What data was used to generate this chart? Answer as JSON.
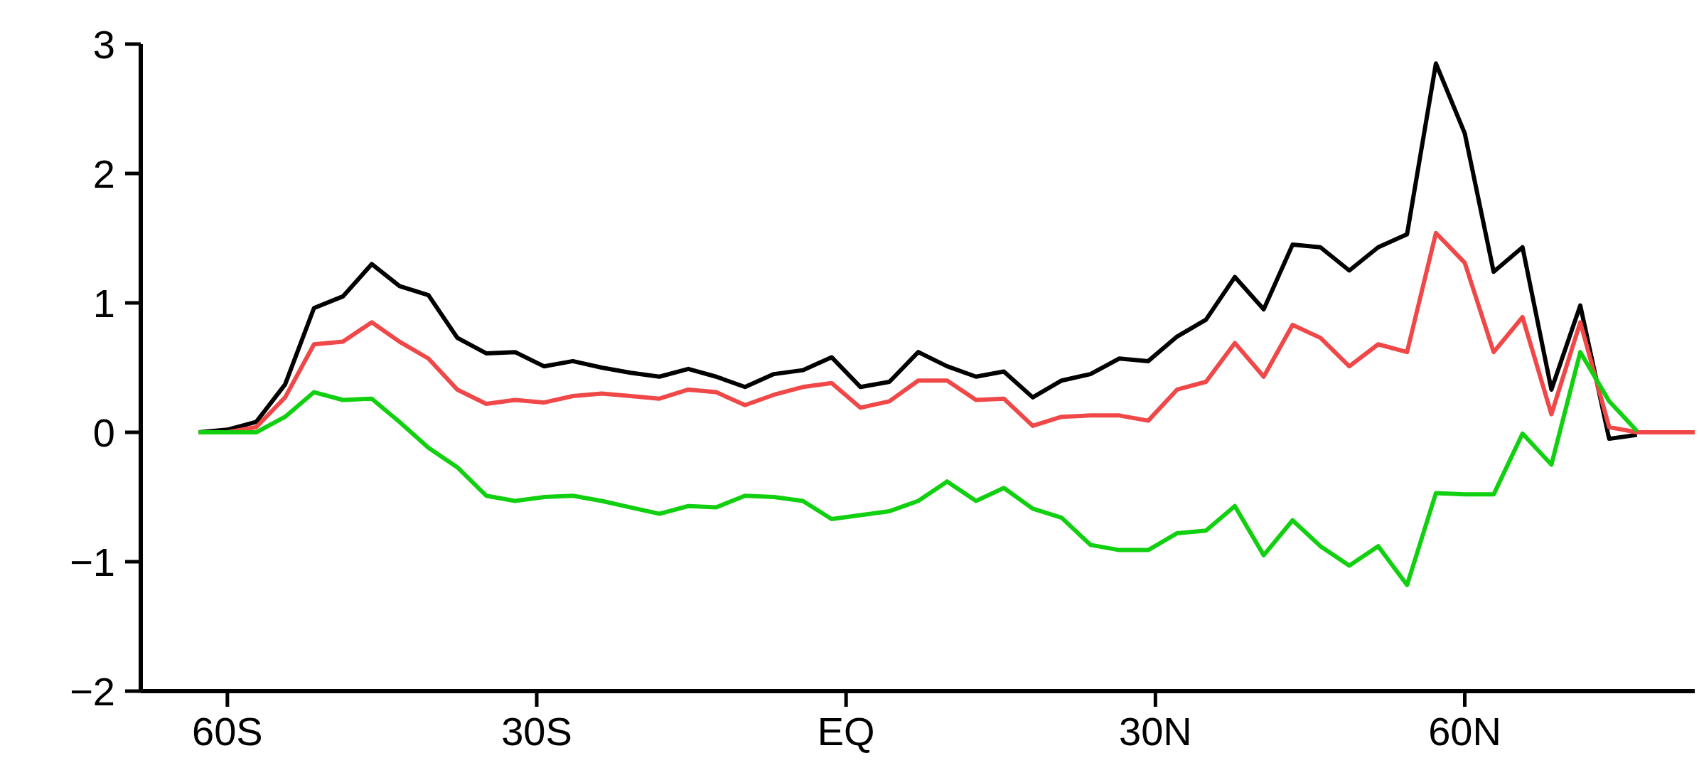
{
  "chart_data": {
    "type": "line",
    "xlim": [
      -68.4,
      82.3
    ],
    "xticks": [
      {
        "value": -60,
        "label": "60S"
      },
      {
        "value": -30,
        "label": "30S"
      },
      {
        "value": 0,
        "label": "EQ"
      },
      {
        "value": 30,
        "label": "30N"
      },
      {
        "value": 60,
        "label": "60N"
      }
    ],
    "ylim": [
      -2,
      3
    ],
    "yticks": [
      {
        "value": -2,
        "label": "−2"
      },
      {
        "value": -1,
        "label": "−1"
      },
      0,
      1,
      2,
      3
    ],
    "grid": false,
    "legend": false,
    "marker": "none",
    "line_style": "solid",
    "x": [
      -62.8,
      -60.0,
      -57.2,
      -54.4,
      -51.6,
      -48.8,
      -46.0,
      -43.3,
      -40.5,
      -37.7,
      -34.9,
      -32.1,
      -29.3,
      -26.5,
      -23.7,
      -20.9,
      -18.1,
      -15.3,
      -12.6,
      -9.8,
      -7.0,
      -4.2,
      -1.4,
      1.4,
      4.2,
      7.0,
      9.8,
      12.6,
      15.3,
      18.1,
      20.9,
      23.7,
      26.5,
      29.3,
      32.1,
      34.9,
      37.7,
      40.5,
      43.3,
      46.0,
      48.8,
      51.6,
      54.4,
      57.2,
      60.0,
      62.8,
      65.6,
      68.4,
      71.2,
      74.0,
      76.7
    ],
    "series": [
      {
        "color": "#000000",
        "values": [
          0,
          0.02,
          0.08,
          0.37,
          0.96,
          1.05,
          1.3,
          1.13,
          1.06,
          0.73,
          0.61,
          0.62,
          0.51,
          0.55,
          0.5,
          0.46,
          0.43,
          0.49,
          0.43,
          0.35,
          0.45,
          0.48,
          0.58,
          0.35,
          0.39,
          0.62,
          0.51,
          0.43,
          0.47,
          0.27,
          0.4,
          0.45,
          0.57,
          0.55,
          0.74,
          0.87,
          1.2,
          0.95,
          1.45,
          1.43,
          1.25,
          1.43,
          1.53,
          2.85,
          2.31,
          1.24,
          1.43,
          0.33,
          0.98,
          -0.05,
          -0.02
        ]
      },
      {
        "color": "#f04848",
        "x": [
          -62.8,
          -60.0,
          -57.2,
          -54.4,
          -51.6,
          -48.8,
          -46.0,
          -43.3,
          -40.5,
          -37.7,
          -34.9,
          -32.1,
          -29.3,
          -26.5,
          -23.7,
          -20.9,
          -18.1,
          -15.3,
          -12.6,
          -9.8,
          -7.0,
          -4.2,
          -1.4,
          1.4,
          4.2,
          7.0,
          9.8,
          12.6,
          15.3,
          18.1,
          20.9,
          23.7,
          26.5,
          29.3,
          32.1,
          34.9,
          37.7,
          40.5,
          43.3,
          46.0,
          48.8,
          51.6,
          54.4,
          57.2,
          60.0,
          62.8,
          65.6,
          68.4,
          71.2,
          74.0,
          76.7,
          79.5,
          82.3
        ],
        "values": [
          0,
          0,
          0.04,
          0.27,
          0.68,
          0.7,
          0.85,
          0.7,
          0.57,
          0.33,
          0.22,
          0.25,
          0.23,
          0.28,
          0.3,
          0.28,
          0.26,
          0.33,
          0.31,
          0.21,
          0.29,
          0.35,
          0.38,
          0.19,
          0.24,
          0.4,
          0.4,
          0.25,
          0.26,
          0.05,
          0.12,
          0.13,
          0.13,
          0.09,
          0.33,
          0.39,
          0.69,
          0.43,
          0.83,
          0.73,
          0.51,
          0.68,
          0.62,
          1.54,
          1.31,
          0.62,
          0.89,
          0.14,
          0.85,
          0.04,
          0,
          0,
          0
        ]
      },
      {
        "color": "#10d010",
        "values": [
          0,
          0,
          0,
          0.12,
          0.31,
          0.25,
          0.26,
          0.08,
          -0.12,
          -0.27,
          -0.49,
          -0.53,
          -0.5,
          -0.49,
          -0.53,
          -0.58,
          -0.63,
          -0.57,
          -0.58,
          -0.49,
          -0.5,
          -0.53,
          -0.67,
          -0.64,
          -0.61,
          -0.53,
          -0.38,
          -0.53,
          -0.43,
          -0.59,
          -0.66,
          -0.87,
          -0.91,
          -0.91,
          -0.78,
          -0.76,
          -0.57,
          -0.95,
          -0.68,
          -0.88,
          -1.03,
          -0.88,
          -1.18,
          -0.47,
          -0.48,
          -0.48,
          -0.01,
          -0.25,
          0.62,
          0.24,
          0.01
        ]
      }
    ]
  }
}
